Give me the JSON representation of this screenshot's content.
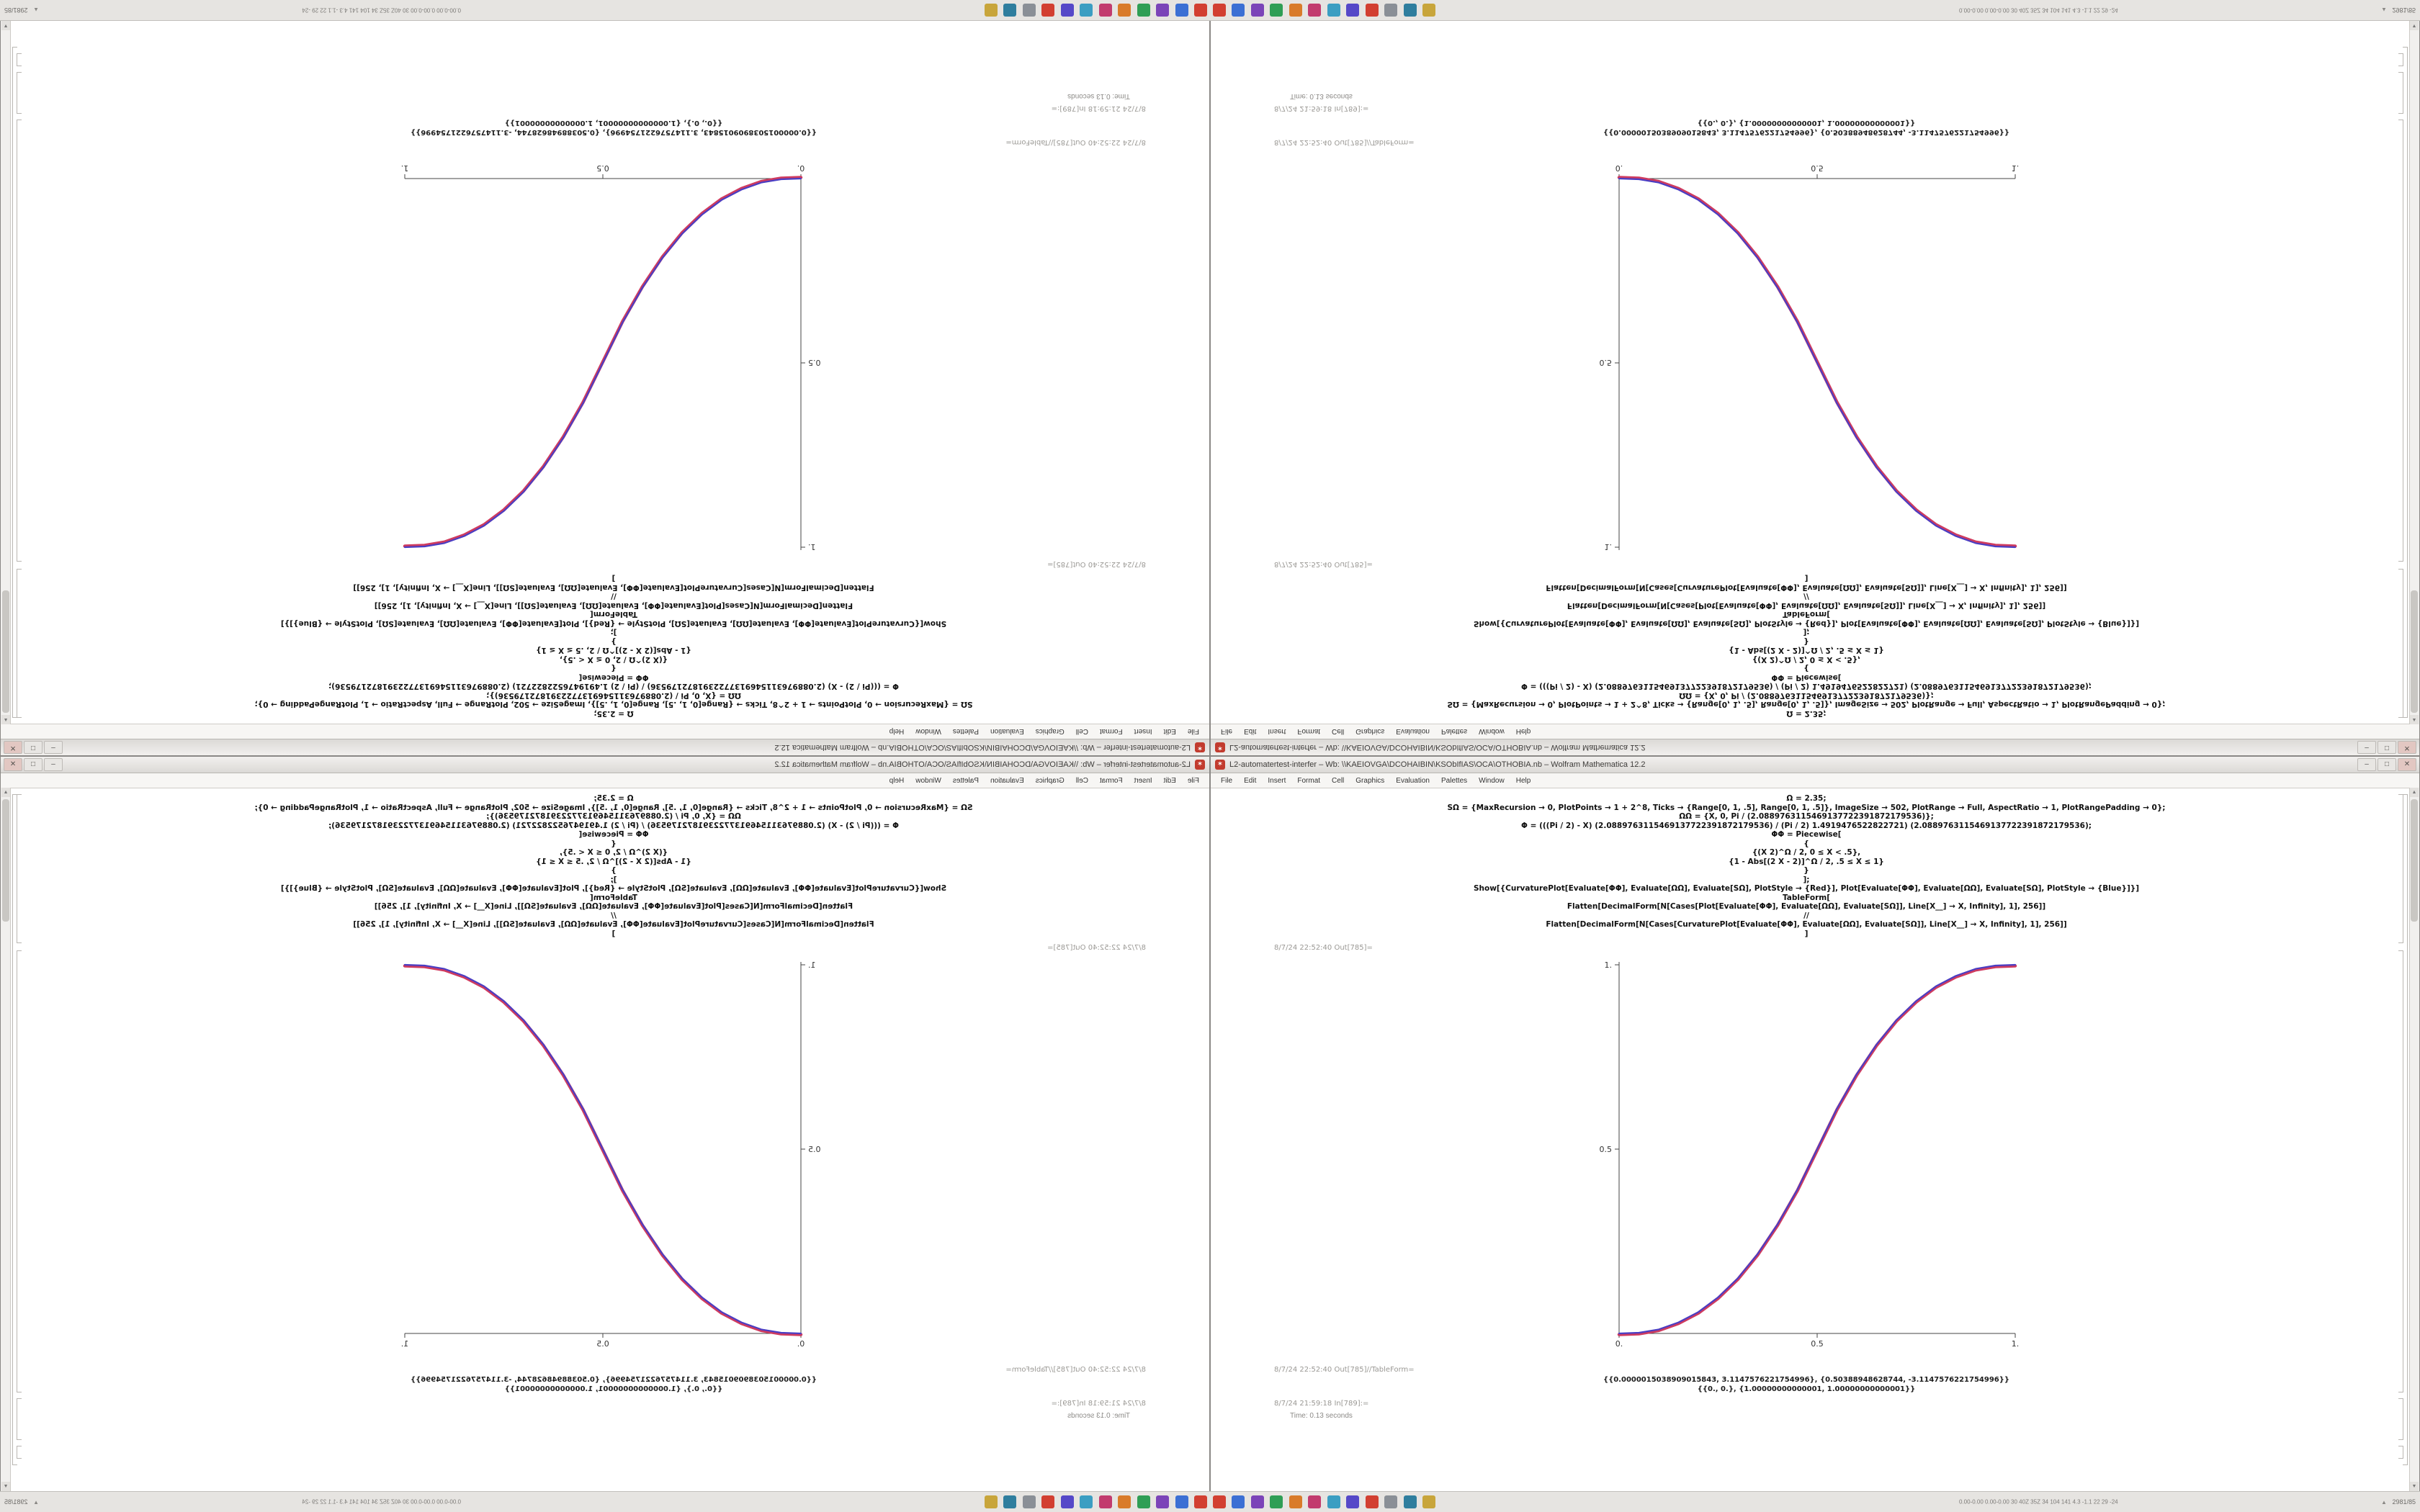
{
  "screen": {
    "notebook": {
      "title": "L2-automatertest-interfer – Wb: \\\\KAEIOVGA\\DCOHAIBIN\\KSObIfIAS\\OCA\\OTHOBIA.nb – Wolfram Mathematica 12.2",
      "window_controls": {
        "minimize": "–",
        "maximize": "□",
        "close": "✕"
      },
      "menu": [
        "File",
        "Edit",
        "Insert",
        "Format",
        "Cell",
        "Graphics",
        "Evaluation",
        "Palettes",
        "Window",
        "Help"
      ],
      "code_lines": [
        "Ω = 2.35;",
        "SΩ = {MaxRecursion → 0, PlotPoints → 1 + 2^8, Ticks → {Range[0, 1, .5], Range[0, 1, .5]}, ImageSize → 502, PlotRange → Full, AspectRatio → 1, PlotRangePadding → 0};",
        "ΩΩ = {X, 0, Pi / (2.0889763115469137722391872179536)};",
        "Φ = (((Pi / 2) - X) (2.0889763115469137722391872179536) / (Pi / 2) 1.4919476522822721) (2.0889763115469137722391872179536);",
        "ΦΦ = Piecewise[",
        "{",
        "{(X 2)^Ω / 2, 0 ≤ X < .5},",
        "{1 - Abs[(2 X - 2)]^Ω / 2, .5 ≤ X ≤ 1}",
        "}",
        "];",
        "Show[{CurvaturePlot[Evaluate[ΦΦ], Evaluate[ΩΩ], Evaluate[SΩ], PlotStyle → {Red}], Plot[Evaluate[ΦΦ], Evaluate[ΩΩ], Evaluate[SΩ], PlotStyle → {Blue}]}]",
        "TableForm[",
        "Flatten[DecimalForm[N[Cases[Plot[Evaluate[ΦΦ], Evaluate[ΩΩ], Evaluate[SΩ]], Line[X__] → X, Infinity], 1], 256]]",
        "//",
        "Flatten[DecimalForm[N[Cases[CurvaturePlot[Evaluate[ΦΦ], Evaluate[ΩΩ], Evaluate[SΩ]], Line[X__] → X, Infinity], 1], 256]]",
        "]"
      ],
      "out_label_plot": "8/7/24 22:52:40 Out[785]=",
      "out_label_table": "8/7/24 22:52:40 Out[785]//TableForm=",
      "table_lines": [
        "{{0.0000015038909015843, 3.1147576221754996}, {0.50388948628744, -3.1147576221754996}}",
        "{{0., 0.}, {1.00000000000001, 1.00000000000001}}"
      ],
      "in_label": "8/7/24 21:59:18 In[789]:=",
      "status_time": "Time: 0.13 seconds",
      "plot": {
        "x_ticks": [
          "0.",
          "0.5",
          "1."
        ],
        "y_ticks": [
          "0.5",
          "1."
        ],
        "red_color": "#cf3b5f",
        "blue_color": "#4a3ec4",
        "points": [
          [
            0,
            0
          ],
          [
            0.05,
            0.002
          ],
          [
            0.1,
            0.011
          ],
          [
            0.15,
            0.03
          ],
          [
            0.2,
            0.058
          ],
          [
            0.25,
            0.098
          ],
          [
            0.3,
            0.15
          ],
          [
            0.35,
            0.216
          ],
          [
            0.4,
            0.296
          ],
          [
            0.45,
            0.39
          ],
          [
            0.5,
            0.5
          ],
          [
            0.55,
            0.61
          ],
          [
            0.6,
            0.704
          ],
          [
            0.65,
            0.784
          ],
          [
            0.7,
            0.85
          ],
          [
            0.75,
            0.902
          ],
          [
            0.8,
            0.942
          ],
          [
            0.85,
            0.97
          ],
          [
            0.9,
            0.989
          ],
          [
            0.95,
            0.998
          ],
          [
            1,
            1
          ]
        ]
      }
    },
    "taskbar": {
      "stats_text": "0.00-0.00  0.00-0.00  30  40Z 35Z 34  104 141  4.3  -1.1  22 29 -24",
      "expander": "▲",
      "corner_text": "2981/85",
      "icons": [
        {
          "name": "app-icon-red",
          "color": "#d23f31"
        },
        {
          "name": "app-icon-blue",
          "color": "#3b6fd4"
        },
        {
          "name": "app-icon-purple",
          "color": "#7b44b8"
        },
        {
          "name": "app-icon-green",
          "color": "#2f9e55"
        },
        {
          "name": "app-icon-orange",
          "color": "#d97b2a"
        },
        {
          "name": "app-icon-magenta",
          "color": "#c23b6e"
        },
        {
          "name": "app-icon-teal",
          "color": "#3b9ec2"
        },
        {
          "name": "app-icon-indigo",
          "color": "#5548c8"
        },
        {
          "name": "app-icon-red2",
          "color": "#d23f31"
        },
        {
          "name": "app-icon-gray",
          "color": "#8a8f96"
        },
        {
          "name": "app-icon-cyan",
          "color": "#2f7e9e"
        },
        {
          "name": "app-icon-gold",
          "color": "#c8a53b"
        }
      ]
    }
  },
  "chart_data": {
    "type": "line",
    "title": "",
    "xlabel": "",
    "ylabel": "",
    "xlim": [
      0,
      1
    ],
    "ylim": [
      0,
      1
    ],
    "x_tick_labels": [
      "0.",
      "0.5",
      "1."
    ],
    "y_tick_labels": [
      "0.5",
      "1."
    ],
    "grid": false,
    "legend": "none",
    "note": "Sigmoid piecewise curve (X*2)^2.35/2 for 0<X<.5, 1-Abs[2X-2]^2.35/2 for .5<X<1; red CurvaturePlot and blue Plot overlap. Shown 4x in mirrored quadrants (ascending bottom-right/top-left, descending mirrors).",
    "series": [
      {
        "name": "Plot (Blue)",
        "color": "#4a3ec4",
        "x": [
          0,
          0.05,
          0.1,
          0.15,
          0.2,
          0.25,
          0.3,
          0.35,
          0.4,
          0.45,
          0.5,
          0.55,
          0.6,
          0.65,
          0.7,
          0.75,
          0.8,
          0.85,
          0.9,
          0.95,
          1
        ],
        "y": [
          0,
          0.002,
          0.011,
          0.03,
          0.058,
          0.098,
          0.15,
          0.216,
          0.296,
          0.39,
          0.5,
          0.61,
          0.704,
          0.784,
          0.85,
          0.902,
          0.942,
          0.97,
          0.989,
          0.998,
          1
        ]
      },
      {
        "name": "CurvaturePlot (Red)",
        "color": "#cf3b5f",
        "x": [
          0,
          0.05,
          0.1,
          0.15,
          0.2,
          0.25,
          0.3,
          0.35,
          0.4,
          0.45,
          0.5,
          0.55,
          0.6,
          0.65,
          0.7,
          0.75,
          0.8,
          0.85,
          0.9,
          0.95,
          1
        ],
        "y": [
          0,
          0.002,
          0.011,
          0.03,
          0.058,
          0.098,
          0.15,
          0.216,
          0.296,
          0.39,
          0.5,
          0.61,
          0.704,
          0.784,
          0.85,
          0.902,
          0.942,
          0.97,
          0.989,
          0.998,
          1
        ]
      }
    ]
  }
}
